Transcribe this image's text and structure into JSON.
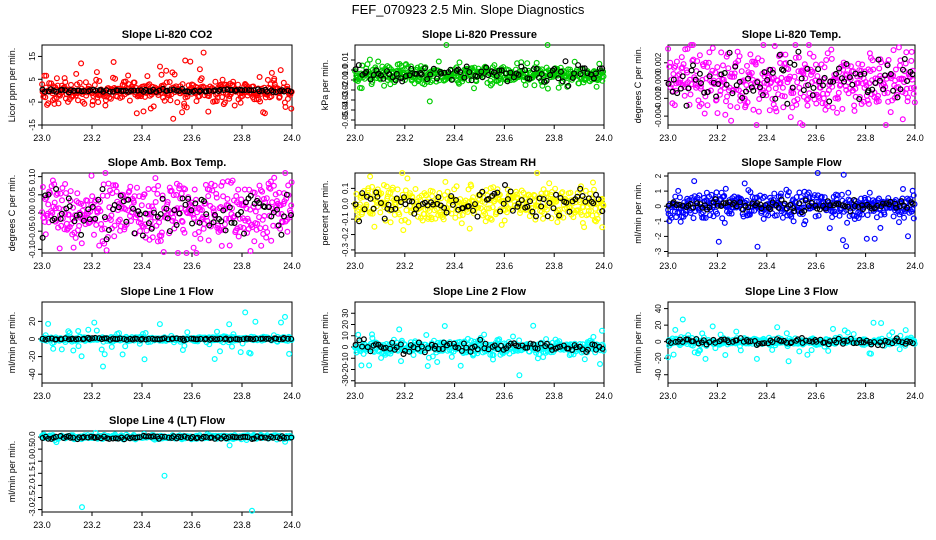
{
  "figure_title": "FEF_070923  2.5 Min. Slope Diagnostics",
  "colors": {
    "red": "#ff0000",
    "green": "#00cc00",
    "magenta": "#ff00ff",
    "yellow": "#ffff00",
    "blue": "#0000ff",
    "cyan": "#00ffff",
    "black": "#000000"
  },
  "chart_data": [
    {
      "type": "scatter",
      "title": "Slope Li-820 CO2",
      "ylabel": "Licor ppm per min.",
      "xlim": [
        23.0,
        24.0
      ],
      "ylim": [
        -15,
        20
      ],
      "yticks": [
        -15,
        -5,
        5,
        15
      ],
      "ytick_labels": [
        "-15",
        "-5",
        "5",
        "15"
      ],
      "xticks": [
        23.0,
        23.2,
        23.4,
        23.6,
        23.8,
        24.0
      ],
      "xtick_labels": [
        "23.0",
        "23.2",
        "23.4",
        "23.6",
        "23.8",
        "24.0"
      ],
      "color_key": "red",
      "series": [
        {
          "name": "all",
          "color_key": "red",
          "n": 420,
          "center": 0,
          "spread": 1.8,
          "outlier_rate": 0.25,
          "outlier_spread": 6,
          "seed": 11
        },
        {
          "name": "sampled",
          "color_key": "black",
          "n": 90,
          "center": 0,
          "spread": 0.4,
          "outlier_rate": 0,
          "outlier_spread": 0,
          "seed": 12
        }
      ]
    },
    {
      "type": "scatter",
      "title": "Slope Li-820 Pressure",
      "ylabel": "kPa per min.",
      "xlim": [
        23.0,
        24.0
      ],
      "ylim": [
        -0.055,
        0.025
      ],
      "yticks": [
        -0.05,
        -0.04,
        -0.03,
        -0.02,
        -0.01,
        0.0,
        0.01
      ],
      "ytick_labels": [
        "-0.05",
        "-0.04",
        "-0.03",
        "-0.02",
        "-0.01",
        "0.0",
        "0.01"
      ],
      "xticks": [
        23.0,
        23.2,
        23.4,
        23.6,
        23.8,
        24.0
      ],
      "xtick_labels": [
        "23.0",
        "23.2",
        "23.4",
        "23.6",
        "23.8",
        "24.0"
      ],
      "color_key": "green",
      "series": [
        {
          "name": "all",
          "color_key": "green",
          "n": 420,
          "center": -0.004,
          "spread": 0.005,
          "outlier_rate": 0.06,
          "outlier_spread": 0.015,
          "seed": 21
        },
        {
          "name": "sampled",
          "color_key": "black",
          "n": 90,
          "center": -0.004,
          "spread": 0.004,
          "outlier_rate": 0,
          "outlier_spread": 0,
          "seed": 22
        }
      ]
    },
    {
      "type": "scatter",
      "title": "Slope Li-820 Temp.",
      "ylabel": "degrees C per min.",
      "xlim": [
        23.0,
        24.0
      ],
      "ylim": [
        -0.005,
        0.004
      ],
      "yticks": [
        -0.004,
        -0.002,
        0.0,
        0.002
      ],
      "ytick_labels": [
        "-0.004",
        "-0.002",
        "0.000",
        "0.002"
      ],
      "xticks": [
        23.0,
        23.2,
        23.4,
        23.6,
        23.8,
        24.0
      ],
      "xtick_labels": [
        "23.0",
        "23.2",
        "23.4",
        "23.6",
        "23.8",
        "24.0"
      ],
      "color_key": "magenta",
      "series": [
        {
          "name": "all",
          "color_key": "magenta",
          "n": 420,
          "center": 0.0,
          "spread": 0.0017,
          "outlier_rate": 0.03,
          "outlier_spread": 0.003,
          "seed": 31
        },
        {
          "name": "sampled",
          "color_key": "black",
          "n": 90,
          "center": 0.0,
          "spread": 0.0016,
          "outlier_rate": 0,
          "outlier_spread": 0,
          "seed": 32
        }
      ]
    },
    {
      "type": "scatter",
      "title": "Slope Amb. Box Temp.",
      "ylabel": "degrees C per min.",
      "xlim": [
        23.0,
        24.0
      ],
      "ylim": [
        -0.11,
        0.11
      ],
      "yticks": [
        -0.1,
        -0.05,
        0.0,
        0.05,
        0.1
      ],
      "ytick_labels": [
        "-0.10",
        "-0.05",
        "0.00",
        "0.05",
        "0.10"
      ],
      "xticks": [
        23.0,
        23.2,
        23.4,
        23.6,
        23.8,
        24.0
      ],
      "xtick_labels": [
        "23.0",
        "23.2",
        "23.4",
        "23.6",
        "23.8",
        "24.0"
      ],
      "color_key": "magenta",
      "series": [
        {
          "name": "all",
          "color_key": "magenta",
          "n": 420,
          "center": 0.0,
          "spread": 0.045,
          "outlier_rate": 0.03,
          "outlier_spread": 0.06,
          "seed": 41
        },
        {
          "name": "sampled",
          "color_key": "black",
          "n": 90,
          "center": 0.0,
          "spread": 0.035,
          "outlier_rate": 0,
          "outlier_spread": 0,
          "seed": 42
        }
      ]
    },
    {
      "type": "scatter",
      "title": "Slope Gas Stream RH",
      "ylabel": "percent per min.",
      "xlim": [
        23.0,
        24.0
      ],
      "ylim": [
        -0.32,
        0.2
      ],
      "yticks": [
        -0.3,
        -0.2,
        -0.1,
        0.0,
        0.1
      ],
      "ytick_labels": [
        "-0.3",
        "-0.2",
        "-0.1",
        "0.0",
        "0.1"
      ],
      "xticks": [
        23.0,
        23.2,
        23.4,
        23.6,
        23.8,
        24.0
      ],
      "xtick_labels": [
        "23.0",
        "23.2",
        "23.4",
        "23.6",
        "23.8",
        "24.0"
      ],
      "color_key": "yellow",
      "series": [
        {
          "name": "all",
          "color_key": "yellow",
          "n": 420,
          "center": 0.0,
          "spread": 0.06,
          "outlier_rate": 0.03,
          "outlier_spread": 0.12,
          "seed": 51
        },
        {
          "name": "sampled",
          "color_key": "black",
          "n": 90,
          "center": 0.0,
          "spread": 0.045,
          "outlier_rate": 0,
          "outlier_spread": 0,
          "seed": 52
        }
      ]
    },
    {
      "type": "scatter",
      "title": "Slope Sample Flow",
      "ylabel": "ml/min per min.",
      "xlim": [
        23.0,
        24.0
      ],
      "ylim": [
        -3.1,
        2.2
      ],
      "yticks": [
        -3,
        -2,
        -1,
        0,
        1,
        2
      ],
      "ytick_labels": [
        "-3",
        "-2",
        "-1",
        "0",
        "1",
        "2"
      ],
      "xticks": [
        23.0,
        23.2,
        23.4,
        23.6,
        23.8,
        24.0
      ],
      "xtick_labels": [
        "23.0",
        "23.2",
        "23.4",
        "23.6",
        "23.8",
        "24.0"
      ],
      "color_key": "blue",
      "series": [
        {
          "name": "all",
          "color_key": "blue",
          "n": 420,
          "center": 0.0,
          "spread": 0.45,
          "outlier_rate": 0.06,
          "outlier_spread": 1.3,
          "seed": 61
        },
        {
          "name": "sampled",
          "color_key": "black",
          "n": 90,
          "center": 0.05,
          "spread": 0.18,
          "outlier_rate": 0,
          "outlier_spread": 0,
          "seed": 62
        }
      ]
    },
    {
      "type": "scatter",
      "title": "Slope Line 1 Flow",
      "ylabel": "ml/min per min.",
      "xlim": [
        23.0,
        24.0
      ],
      "ylim": [
        -50,
        42
      ],
      "yticks": [
        -40,
        -20,
        0,
        20
      ],
      "ytick_labels": [
        "-40",
        "-20",
        "0",
        "20"
      ],
      "xticks": [
        23.0,
        23.2,
        23.4,
        23.6,
        23.8,
        24.0
      ],
      "xtick_labels": [
        "23.0",
        "23.2",
        "23.4",
        "23.6",
        "23.8",
        "24.0"
      ],
      "color_key": "cyan",
      "series": [
        {
          "name": "all",
          "color_key": "cyan",
          "n": 420,
          "center": 0,
          "spread": 1.2,
          "outlier_rate": 0.12,
          "outlier_spread": 14,
          "seed": 71
        },
        {
          "name": "sampled",
          "color_key": "black",
          "n": 90,
          "center": 0,
          "spread": 0.5,
          "outlier_rate": 0,
          "outlier_spread": 0,
          "seed": 72
        }
      ]
    },
    {
      "type": "scatter",
      "title": "Slope Line 2 Flow",
      "ylabel": "ml/min per min.",
      "xlim": [
        23.0,
        24.0
      ],
      "ylim": [
        -32,
        40
      ],
      "yticks": [
        -30,
        -20,
        -10,
        0,
        10,
        20,
        30
      ],
      "ytick_labels": [
        "-30",
        "-20",
        "-10",
        "0",
        "10",
        "20",
        "30"
      ],
      "xticks": [
        23.0,
        23.2,
        23.4,
        23.6,
        23.8,
        24.0
      ],
      "xtick_labels": [
        "23.0",
        "23.2",
        "23.4",
        "23.6",
        "23.8",
        "24.0"
      ],
      "color_key": "cyan",
      "series": [
        {
          "name": "all",
          "color_key": "cyan",
          "n": 420,
          "center": 0,
          "spread": 3,
          "outlier_rate": 0.12,
          "outlier_spread": 10,
          "seed": 81
        },
        {
          "name": "sampled",
          "color_key": "black",
          "n": 90,
          "center": 0,
          "spread": 2.5,
          "outlier_rate": 0,
          "outlier_spread": 0,
          "seed": 82
        }
      ]
    },
    {
      "type": "scatter",
      "title": "Slope Line 3 Flow",
      "ylabel": "ml/min per min.",
      "xlim": [
        23.0,
        24.0
      ],
      "ylim": [
        -50,
        48
      ],
      "yticks": [
        -40,
        -20,
        0,
        20,
        40
      ],
      "ytick_labels": [
        "-40",
        "-20",
        "0",
        "20",
        "40"
      ],
      "xticks": [
        23.0,
        23.2,
        23.4,
        23.6,
        23.8,
        24.0
      ],
      "xtick_labels": [
        "23.0",
        "23.2",
        "23.4",
        "23.6",
        "23.8",
        "24.0"
      ],
      "color_key": "cyan",
      "series": [
        {
          "name": "all",
          "color_key": "cyan",
          "n": 420,
          "center": 0,
          "spread": 2,
          "outlier_rate": 0.12,
          "outlier_spread": 14,
          "seed": 91
        },
        {
          "name": "sampled",
          "color_key": "black",
          "n": 90,
          "center": 0,
          "spread": 2,
          "outlier_rate": 0,
          "outlier_spread": 0,
          "seed": 92
        }
      ]
    },
    {
      "type": "scatter",
      "title": "Slope Line 4 (LT) Flow",
      "ylabel": "ml/min per min.",
      "xlim": [
        23.0,
        24.0
      ],
      "ylim": [
        -3.1,
        0.25
      ],
      "yticks": [
        -3.0,
        -2.5,
        -2.0,
        -1.5,
        -1.0,
        -0.5,
        0.0
      ],
      "ytick_labels": [
        "-3.0",
        "-2.5",
        "-2.0",
        "-1.5",
        "-1.0",
        "-0.5",
        "0.0"
      ],
      "xticks": [
        23.0,
        23.2,
        23.4,
        23.6,
        23.8,
        24.0
      ],
      "xtick_labels": [
        "23.0",
        "23.2",
        "23.4",
        "23.6",
        "23.8",
        "24.0"
      ],
      "color_key": "cyan",
      "series": [
        {
          "name": "all",
          "color_key": "cyan",
          "n": 420,
          "center": 0.0,
          "spread": 0.04,
          "outlier_rate": 0.01,
          "outlier_spread": 0.2,
          "seed": 101
        },
        {
          "name": "sampled",
          "color_key": "black",
          "n": 90,
          "center": -0.02,
          "spread": 0.03,
          "outlier_rate": 0,
          "outlier_spread": 0,
          "seed": 102
        }
      ],
      "extra_points": [
        {
          "x": 23.16,
          "y": -2.9,
          "color_key": "cyan"
        },
        {
          "x": 23.49,
          "y": -1.6,
          "color_key": "cyan"
        },
        {
          "x": 23.84,
          "y": -3.05,
          "color_key": "cyan"
        }
      ]
    }
  ]
}
